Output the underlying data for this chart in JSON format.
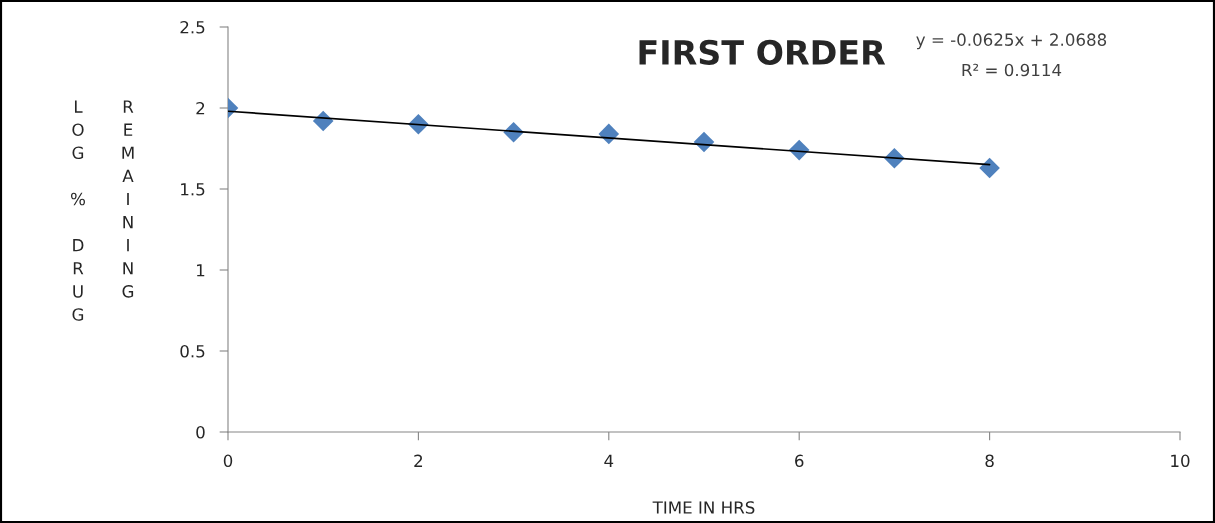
{
  "chart_data": {
    "type": "scatter",
    "title": "FIRST ORDER",
    "xlabel": "TIME IN HRS",
    "ylabel": "LOG % DRUG REMAINING",
    "annotations": [
      "y = -0.0625x + 2.0688",
      "R² = 0.9114"
    ],
    "x": [
      0,
      1,
      2,
      3,
      4,
      5,
      6,
      7,
      8
    ],
    "series": [
      {
        "color": "#4f81bd",
        "marker": "diamond",
        "values": [
          2.0,
          1.92,
          1.9,
          1.85,
          1.84,
          1.79,
          1.74,
          1.69,
          1.63
        ]
      },
      {
        "type": "line",
        "color": "#000000",
        "x": [
          0,
          8
        ],
        "values": [
          1.98,
          1.65
        ]
      }
    ],
    "xlim": [
      0,
      10
    ],
    "xticks": [
      0,
      2,
      4,
      6,
      8,
      10
    ],
    "ylim": [
      0,
      2.5
    ],
    "yticks": [
      0,
      0.5,
      1,
      1.5,
      2,
      2.5
    ],
    "grid": false,
    "legend": false
  }
}
